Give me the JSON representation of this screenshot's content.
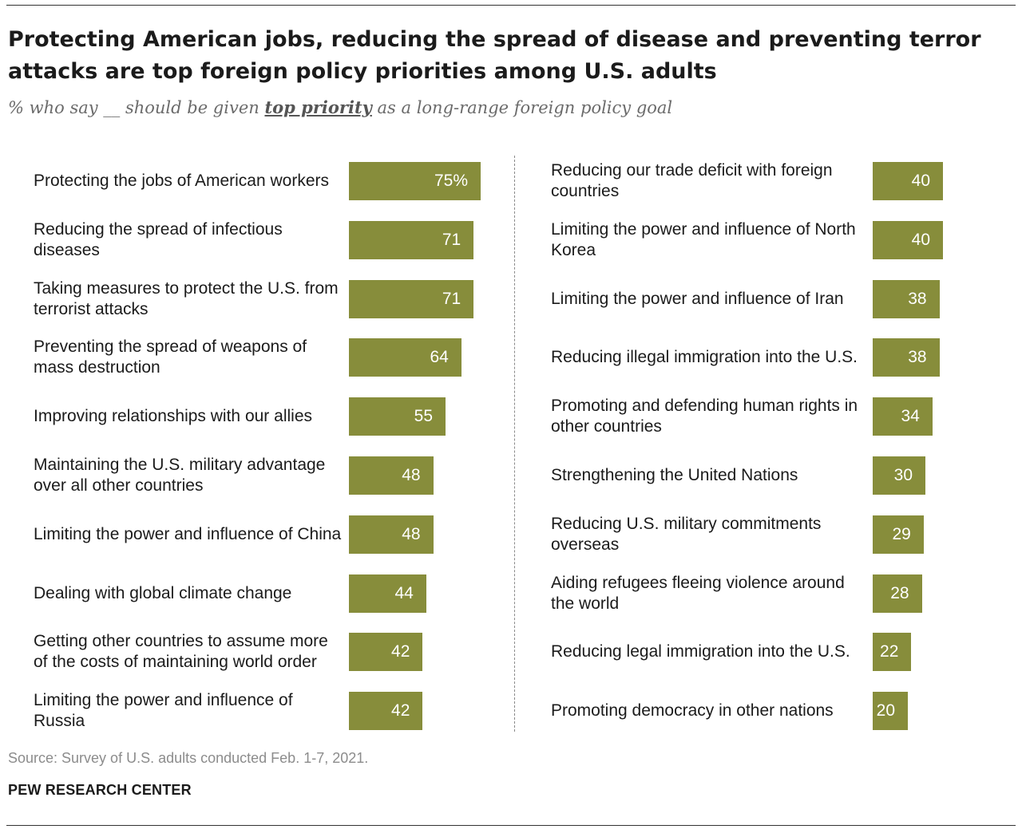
{
  "header": {
    "title": "Protecting American jobs, reducing the spread of disease and preventing terror attacks are top foreign policy priorities among U.S. adults",
    "subtitle_pre": "% who say __ should be given ",
    "subtitle_emph": "top priority",
    "subtitle_post": " as a long-range foreign policy goal"
  },
  "footer": {
    "source": "Source: Survey of U.S. adults conducted Feb. 1-7, 2021.",
    "brand": "PEW RESEARCH CENTER"
  },
  "colors": {
    "bar": "#878d3b",
    "text": "#1b1b1b",
    "muted": "#8c8c8c"
  },
  "chart_data": {
    "type": "bar",
    "orientation": "horizontal",
    "unit": "%",
    "xlim": [
      0,
      100
    ],
    "grid": false,
    "left_column": [
      {
        "category": "Protecting the jobs of American workers",
        "value": 75,
        "label": "75%"
      },
      {
        "category": "Reducing the spread of infectious diseases",
        "value": 71,
        "label": "71"
      },
      {
        "category": "Taking measures to protect the U.S. from terrorist attacks",
        "value": 71,
        "label": "71"
      },
      {
        "category": "Preventing the spread of weapons of mass destruction",
        "value": 64,
        "label": "64"
      },
      {
        "category": "Improving relationships with our allies",
        "value": 55,
        "label": "55"
      },
      {
        "category": "Maintaining the U.S. military advantage over all other countries",
        "value": 48,
        "label": "48"
      },
      {
        "category": "Limiting the power and influence of China",
        "value": 48,
        "label": "48"
      },
      {
        "category": "Dealing with global climate change",
        "value": 44,
        "label": "44"
      },
      {
        "category": "Getting other countries to assume more of the costs of maintaining world order",
        "value": 42,
        "label": "42"
      },
      {
        "category": "Limiting the power and influence of Russia",
        "value": 42,
        "label": "42"
      }
    ],
    "right_column": [
      {
        "category": "Reducing our trade deficit with foreign countries",
        "value": 40,
        "label": "40"
      },
      {
        "category": "Limiting the power and influence of North Korea",
        "value": 40,
        "label": "40"
      },
      {
        "category": "Limiting the power and influence of Iran",
        "value": 38,
        "label": "38"
      },
      {
        "category": "Reducing illegal immigration into the U.S.",
        "value": 38,
        "label": "38"
      },
      {
        "category": "Promoting and defending human rights in other countries",
        "value": 34,
        "label": "34"
      },
      {
        "category": "Strengthening the United Nations",
        "value": 30,
        "label": "30"
      },
      {
        "category": "Reducing U.S. military commitments overseas",
        "value": 29,
        "label": "29"
      },
      {
        "category": "Aiding refugees fleeing violence around the world",
        "value": 28,
        "label": "28"
      },
      {
        "category": "Reducing legal immigration into the U.S.",
        "value": 22,
        "label": "22"
      },
      {
        "category": "Promoting democracy in other nations",
        "value": 20,
        "label": "20"
      }
    ]
  }
}
